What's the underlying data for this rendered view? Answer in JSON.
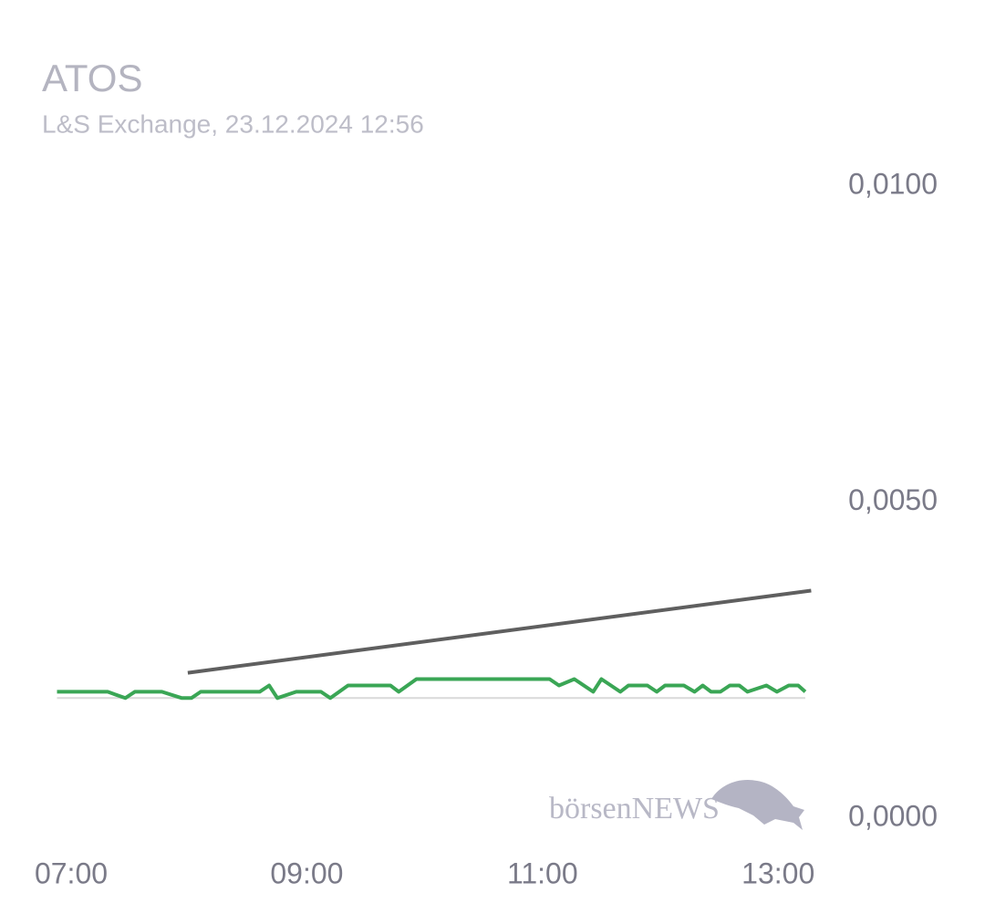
{
  "chart_data": {
    "type": "line",
    "title": "ATOS",
    "subtitle": "L&S Exchange, 23.12.2024 12:56",
    "watermark": "börsenNEWS",
    "xlim": [
      6.5,
      13.5
    ],
    "xticks": [
      {
        "value": 7,
        "label": "07:00"
      },
      {
        "value": 9,
        "label": "09:00"
      },
      {
        "value": 11,
        "label": "11:00"
      },
      {
        "value": 13,
        "label": "13:00"
      }
    ],
    "ylim": [
      0,
      0.01
    ],
    "yticks": [
      {
        "value": 0,
        "label": "0,0000"
      },
      {
        "value": 0.005,
        "label": "0,0050"
      },
      {
        "value": 0.01,
        "label": "0,0100"
      }
    ],
    "grid": false,
    "series": [
      {
        "color": "#d9d9d9",
        "width": 2,
        "x": [
          6.88,
          13.23
        ],
        "values": [
          0.0019,
          0.0019
        ]
      },
      {
        "color": "#5f5f5f",
        "width": 4,
        "x": [
          7.99,
          13.28
        ],
        "values": [
          0.0023,
          0.0036
        ]
      },
      {
        "color": "#3aa655",
        "width": 4,
        "x": [
          6.88,
          7.31,
          7.46,
          7.54,
          7.77,
          7.94,
          8.02,
          8.1,
          8.6,
          8.68,
          8.75,
          8.91,
          9.12,
          9.2,
          9.35,
          9.57,
          9.65,
          9.71,
          9.78,
          9.93,
          11.06,
          11.14,
          11.27,
          11.43,
          11.5,
          11.66,
          11.73,
          11.89,
          11.97,
          12.04,
          12.2,
          12.29,
          12.36,
          12.43,
          12.51,
          12.59,
          12.67,
          12.74,
          12.9,
          12.99,
          13.09,
          13.17,
          13.23
        ],
        "values": [
          0.002,
          0.002,
          0.0019,
          0.002,
          0.002,
          0.0019,
          0.0019,
          0.002,
          0.002,
          0.0021,
          0.0019,
          0.002,
          0.002,
          0.0019,
          0.0021,
          0.0021,
          0.0021,
          0.0021,
          0.002,
          0.0022,
          0.0022,
          0.0021,
          0.0022,
          0.002,
          0.0022,
          0.002,
          0.0021,
          0.0021,
          0.002,
          0.0021,
          0.0021,
          0.002,
          0.0021,
          0.002,
          0.002,
          0.0021,
          0.0021,
          0.002,
          0.0021,
          0.002,
          0.0021,
          0.0021,
          0.002
        ]
      }
    ]
  }
}
